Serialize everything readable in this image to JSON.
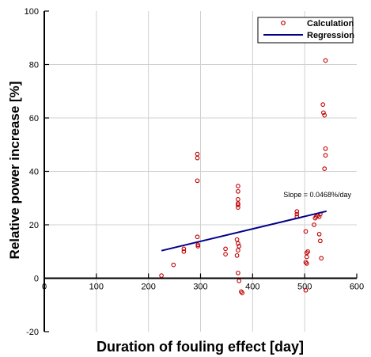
{
  "chart_data": {
    "type": "scatter",
    "xlabel": "Duration of fouling effect [day]",
    "ylabel": "Relative power increase [%]",
    "xlim": [
      0,
      600
    ],
    "ylim": [
      -20,
      100
    ],
    "xticks": [
      0,
      100,
      200,
      300,
      400,
      500,
      600
    ],
    "yticks": [
      -20,
      0,
      20,
      40,
      60,
      80,
      100
    ],
    "grid": true,
    "legend_position": "top-right",
    "annotation": "Slope = 0.0468%/day",
    "series": [
      {
        "name": "Calculation",
        "kind": "scatter",
        "marker": "open-circle",
        "color": "#c00000",
        "points": [
          [
            225,
            1
          ],
          [
            248,
            5
          ],
          [
            268,
            10
          ],
          [
            268,
            11
          ],
          [
            295,
            12
          ],
          [
            295,
            12.5
          ],
          [
            294,
            15.5
          ],
          [
            294,
            36.5
          ],
          [
            294,
            45
          ],
          [
            294,
            46.5
          ],
          [
            348,
            9
          ],
          [
            348,
            11
          ],
          [
            370,
            8.5
          ],
          [
            372,
            10.5
          ],
          [
            374,
            12
          ],
          [
            372,
            13
          ],
          [
            370,
            14.5
          ],
          [
            372,
            2
          ],
          [
            374,
            -1
          ],
          [
            378,
            -5
          ],
          [
            380,
            -5.5
          ],
          [
            372,
            26.5
          ],
          [
            372,
            27.5
          ],
          [
            372,
            28
          ],
          [
            372,
            29.5
          ],
          [
            372,
            32.5
          ],
          [
            372,
            34.5
          ],
          [
            485,
            23
          ],
          [
            485,
            24
          ],
          [
            485,
            25
          ],
          [
            502,
            6
          ],
          [
            504,
            5.5
          ],
          [
            504,
            8
          ],
          [
            504,
            9.5
          ],
          [
            506,
            10
          ],
          [
            502,
            17.5
          ],
          [
            502,
            -4.5
          ],
          [
            518,
            20
          ],
          [
            520,
            22.5
          ],
          [
            522,
            23
          ],
          [
            525,
            23.5
          ],
          [
            528,
            23
          ],
          [
            530,
            24
          ],
          [
            530,
            14
          ],
          [
            528,
            16.5
          ],
          [
            532,
            7.5
          ],
          [
            538,
            41
          ],
          [
            540,
            46
          ],
          [
            540,
            48.5
          ],
          [
            538,
            61
          ],
          [
            536,
            62
          ],
          [
            535,
            65
          ],
          [
            540,
            81.5
          ]
        ]
      },
      {
        "name": "Regression",
        "kind": "line",
        "color": "#00008b",
        "points": [
          [
            225,
            10.3
          ],
          [
            542,
            25.1
          ]
        ]
      }
    ]
  }
}
